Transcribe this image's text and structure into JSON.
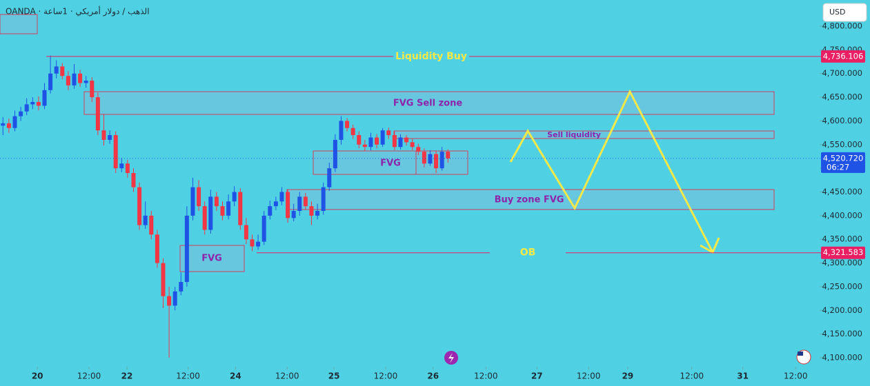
{
  "chart_data": {
    "type": "candlestick",
    "title": "OANDA · الذهب / دولار أمريكي · ‏1ساعة",
    "currency": "USD",
    "up_color": "#1e53e5",
    "down_color": "#f23645",
    "categories": [
      null,
      null,
      null,
      null,
      null,
      null,
      null,
      null,
      null,
      null,
      null,
      null,
      null,
      null,
      null,
      null,
      null,
      null,
      null,
      null,
      null,
      null,
      null,
      null,
      null,
      null,
      null,
      null,
      null,
      null,
      null,
      null,
      null,
      null,
      null,
      null,
      null,
      null,
      null,
      null,
      null,
      null,
      null,
      null,
      null,
      null,
      null,
      null,
      null,
      null,
      null,
      null,
      null,
      null,
      null,
      null,
      null,
      null,
      null,
      null,
      null,
      null,
      null,
      null,
      null,
      null,
      null,
      null,
      null,
      null,
      null,
      null,
      null,
      null,
      null,
      null
    ],
    "open": [
      4590,
      4595,
      4585,
      4610,
      4620,
      4635,
      4640,
      4632,
      4665,
      4700,
      4715,
      4695,
      4675,
      4700,
      4680,
      4685,
      4650,
      4580,
      4560,
      4570,
      4500,
      4510,
      4490,
      4460,
      4380,
      4400,
      4360,
      4300,
      4230,
      4210,
      4240,
      4260,
      4400,
      4460,
      4420,
      4370,
      4440,
      4420,
      4400,
      4430,
      4450,
      4380,
      4350,
      4335,
      4345,
      4400,
      4420,
      4430,
      4450,
      4395,
      4410,
      4440,
      4420,
      4400,
      4410,
      4460,
      4500,
      4560,
      4600,
      4585,
      4570,
      4550,
      4545,
      4565,
      4550,
      4580,
      4570,
      4545,
      4565,
      4555,
      4545,
      4535,
      4510,
      4530,
      4500,
      4535
    ],
    "high": [
      4608,
      4605,
      4622,
      4630,
      4648,
      4650,
      4652,
      4680,
      4738,
      4728,
      4722,
      4705,
      4720,
      4708,
      4695,
      4692,
      4660,
      4615,
      4580,
      4578,
      4522,
      4518,
      4500,
      4470,
      4430,
      4410,
      4370,
      4310,
      4250,
      4250,
      4280,
      4420,
      4480,
      4475,
      4430,
      4455,
      4450,
      4430,
      4445,
      4462,
      4458,
      4395,
      4360,
      4360,
      4410,
      4432,
      4440,
      4460,
      4455,
      4425,
      4450,
      4448,
      4430,
      4425,
      4470,
      4512,
      4572,
      4610,
      4606,
      4592,
      4578,
      4560,
      4575,
      4572,
      4585,
      4586,
      4578,
      4572,
      4570,
      4562,
      4552,
      4542,
      4538,
      4537,
      4545,
      4540
    ],
    "low": [
      4570,
      4575,
      4578,
      4600,
      4612,
      4625,
      4622,
      4625,
      4658,
      4690,
      4688,
      4665,
      4668,
      4672,
      4670,
      4640,
      4570,
      4548,
      4552,
      4490,
      4492,
      4480,
      4450,
      4370,
      4372,
      4350,
      4290,
      4205,
      4100,
      4200,
      4232,
      4250,
      4390,
      4410,
      4360,
      4362,
      4410,
      4390,
      4392,
      4420,
      4370,
      4340,
      4325,
      4328,
      4338,
      4392,
      4412,
      4422,
      4385,
      4388,
      4400,
      4412,
      4380,
      4392,
      4402,
      4452,
      4492,
      4550,
      4578,
      4562,
      4542,
      4536,
      4538,
      4542,
      4545,
      4562,
      4538,
      4540,
      4548,
      4538,
      4528,
      4502,
      4505,
      4490,
      4495,
      4512
    ],
    "close": [
      4595,
      4585,
      4610,
      4620,
      4635,
      4640,
      4632,
      4665,
      4700,
      4715,
      4695,
      4675,
      4700,
      4680,
      4685,
      4650,
      4580,
      4560,
      4570,
      4500,
      4510,
      4490,
      4460,
      4380,
      4400,
      4360,
      4300,
      4230,
      4210,
      4240,
      4260,
      4400,
      4460,
      4420,
      4370,
      4440,
      4420,
      4400,
      4430,
      4450,
      4380,
      4350,
      4335,
      4345,
      4400,
      4420,
      4430,
      4450,
      4395,
      4410,
      4440,
      4420,
      4400,
      4410,
      4460,
      4500,
      4560,
      4600,
      4585,
      4570,
      4550,
      4545,
      4565,
      4550,
      4580,
      4570,
      4545,
      4565,
      4555,
      4545,
      4535,
      4510,
      4530,
      4500,
      4535,
      4520.72
    ],
    "xlim": [
      -0.5,
      137.3
    ],
    "xticks": [
      {
        "value": 5.8,
        "label": "20"
      },
      {
        "value": 14.5,
        "label": "12:00"
      },
      {
        "value": 20.9,
        "label": "22"
      },
      {
        "value": 31.2,
        "label": "12:00"
      },
      {
        "value": 39.2,
        "label": "24"
      },
      {
        "value": 47.9,
        "label": "12:00"
      },
      {
        "value": 55.8,
        "label": "25"
      },
      {
        "value": 64.5,
        "label": "12:00"
      },
      {
        "value": 72.5,
        "label": "26"
      },
      {
        "value": 81.4,
        "label": "12:00"
      },
      {
        "value": 90.0,
        "label": "27"
      },
      {
        "value": 98.7,
        "label": "12:00"
      },
      {
        "value": 105.3,
        "label": "29"
      },
      {
        "value": 116.1,
        "label": "12:00"
      },
      {
        "value": 124.7,
        "label": "31"
      },
      {
        "value": 133.6,
        "label": "12:00"
      }
    ],
    "ylim": [
      4081.1,
      4855.3
    ],
    "yticks": [
      {
        "value": 4100,
        "label": "4,100.000"
      },
      {
        "value": 4150,
        "label": "4,150.000"
      },
      {
        "value": 4200,
        "label": "4,200.000"
      },
      {
        "value": 4250,
        "label": "4,250.000"
      },
      {
        "value": 4300,
        "label": "4,300.000"
      },
      {
        "value": 4350,
        "label": "4,350.000"
      },
      {
        "value": 4400,
        "label": "4,400.000"
      },
      {
        "value": 4450,
        "label": "4,450.000"
      },
      {
        "value": 4500,
        "label": "4,500.000"
      },
      {
        "value": 4550,
        "label": "4,550.000"
      },
      {
        "value": 4600,
        "label": "4,600.000"
      },
      {
        "value": 4650,
        "label": "4,650.000"
      },
      {
        "value": 4700,
        "label": "4,700.000"
      },
      {
        "value": 4750,
        "label": "4,750.000"
      },
      {
        "value": 4800,
        "label": "4,800.000"
      }
    ],
    "levels": [
      {
        "name": "Liquidity Buy",
        "value": 4736.106,
        "label": "4,736.106",
        "color": "#e91e63"
      },
      {
        "name": "OB",
        "value": 4321.583,
        "label": "4,321.583",
        "color": "#e91e63"
      }
    ],
    "last_price": {
      "value": 4520.72,
      "label": "4,520.720",
      "countdown": "06:27",
      "color": "#1e53e5"
    },
    "zones": [
      "FVG Sell zone",
      "Sell liquidity",
      "FVG",
      "Buy zone FVG",
      "FVG"
    ]
  }
}
